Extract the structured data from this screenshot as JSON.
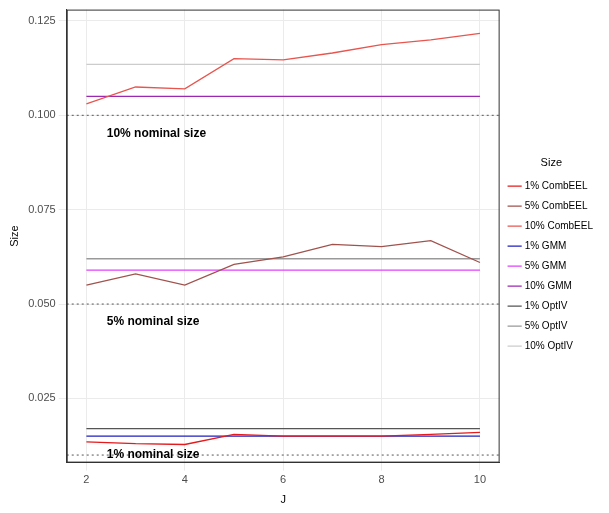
{
  "chart_data": {
    "type": "line",
    "x_label": "J",
    "y_label": "Size",
    "x": [
      2,
      3,
      4,
      5,
      6,
      7,
      8,
      9,
      10
    ],
    "xlim": [
      1.6,
      10.4
    ],
    "xticks": [
      2,
      4,
      6,
      8,
      10
    ],
    "ylim": [
      0.008,
      0.128
    ],
    "yticks": [
      0.025,
      {
        "value": 0.05,
        "label": "0.050"
      },
      0.075,
      {
        "value": 0.1,
        "label": "0.100"
      },
      0.125
    ],
    "grid": true,
    "legend": "right",
    "legend_title": "Size",
    "series": [
      {
        "name": "1% CombEEL",
        "color": "#e41a1c",
        "values": [
          0.0135,
          0.013,
          0.0128,
          0.0155,
          0.015,
          0.015,
          0.015,
          0.0155,
          0.016
        ]
      },
      {
        "name": "5% CombEEL",
        "color": "#a0524d",
        "values": [
          0.055,
          0.058,
          0.055,
          0.0605,
          0.0625,
          0.0658,
          0.0652,
          0.0668,
          0.061
        ]
      },
      {
        "name": "10% CombEEL",
        "color": "#e8554e",
        "values": [
          0.103,
          0.1075,
          0.107,
          0.115,
          0.1147,
          0.1165,
          0.1187,
          0.12,
          0.1217
        ]
      },
      {
        "name": "1% GMM",
        "color": "#1f1fbf",
        "values": [
          0.015,
          0.015,
          0.015,
          0.015,
          0.015,
          0.015,
          0.015,
          0.015,
          0.015
        ]
      },
      {
        "name": "5% GMM",
        "color": "#e040fb",
        "values": [
          0.059,
          0.059,
          0.059,
          0.059,
          0.059,
          0.059,
          0.059,
          0.059,
          0.059
        ]
      },
      {
        "name": "10% GMM",
        "color": "#9c27b0",
        "values": [
          0.105,
          0.105,
          0.105,
          0.105,
          0.105,
          0.105,
          0.105,
          0.105,
          0.105
        ]
      },
      {
        "name": "1% OptIV",
        "color": "#555555",
        "values": [
          0.017,
          0.017,
          0.017,
          0.017,
          0.017,
          0.017,
          0.017,
          0.017,
          0.017
        ]
      },
      {
        "name": "5% OptIV",
        "color": "#999999",
        "values": [
          0.062,
          0.062,
          0.062,
          0.062,
          0.062,
          0.062,
          0.062,
          0.062,
          0.062
        ]
      },
      {
        "name": "10% OptIV",
        "color": "#cccccc",
        "values": [
          0.1135,
          0.1135,
          0.1135,
          0.1135,
          0.1135,
          0.1135,
          0.1135,
          0.1135,
          0.1135
        ]
      }
    ],
    "reference_lines": [
      {
        "y": 0.1,
        "label": "10% nominal size",
        "line_style": "dotted"
      },
      {
        "y": 0.05,
        "label": "5% nominal size",
        "line_style": "dotted"
      },
      {
        "y": 0.01,
        "label": "1% nominal size",
        "line_style": "dotted"
      }
    ]
  }
}
